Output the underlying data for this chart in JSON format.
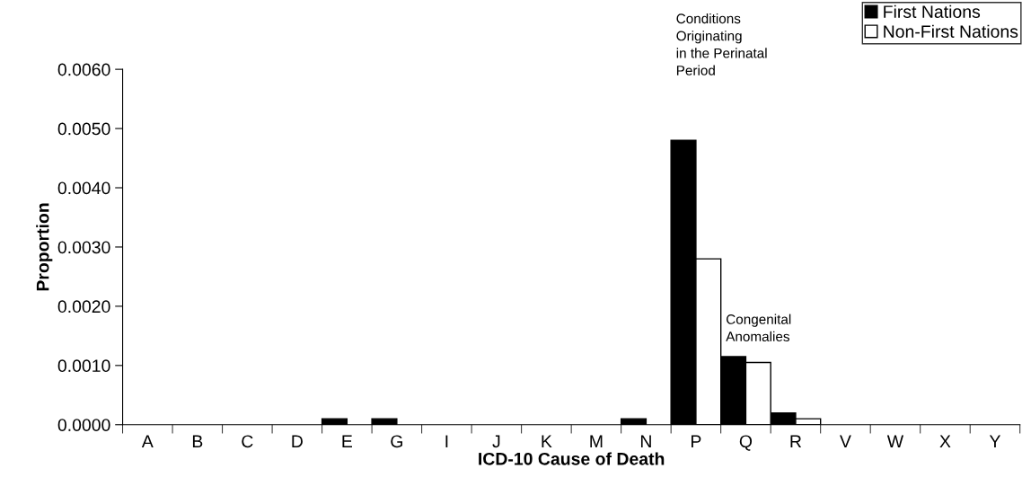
{
  "chart_data": {
    "type": "bar",
    "xlabel": "ICD-10 Cause of Death",
    "ylabel": "Proportion",
    "categories": [
      "A",
      "B",
      "C",
      "D",
      "E",
      "G",
      "I",
      "J",
      "K",
      "M",
      "N",
      "P",
      "Q",
      "R",
      "V",
      "W",
      "X",
      "Y"
    ],
    "series": [
      {
        "name": "First Nations",
        "color": "#000000",
        "values": [
          0,
          0,
          0,
          0,
          0.0001,
          0.0001,
          0,
          0,
          0,
          0,
          0.0001,
          0.0048,
          0.00115,
          0.0002,
          0,
          0,
          0,
          0
        ]
      },
      {
        "name": "Non-First Nations",
        "color": "#ffffff",
        "values": [
          0,
          0,
          0,
          0,
          0,
          0,
          0,
          0,
          0,
          0,
          0,
          0.0028,
          0.00105,
          0.0001,
          0,
          0,
          0,
          0
        ]
      }
    ],
    "ylim": [
      0,
      0.006
    ],
    "yticks": [
      {
        "value": 0,
        "label": "0.0000"
      },
      {
        "value": 0.001,
        "label": "0.0010"
      },
      {
        "value": 0.002,
        "label": "0.0020"
      },
      {
        "value": 0.003,
        "label": "0.0030"
      },
      {
        "value": 0.004,
        "label": "0.0040"
      },
      {
        "value": 0.005,
        "label": "0.0050"
      },
      {
        "value": 0.006,
        "label": "0.0060"
      }
    ],
    "annotations": [
      "Conditions\nOriginating\nin the Perinatal\nPeriod",
      "Congenital\nAnomalies"
    ],
    "grid": false,
    "legend": "top right"
  }
}
